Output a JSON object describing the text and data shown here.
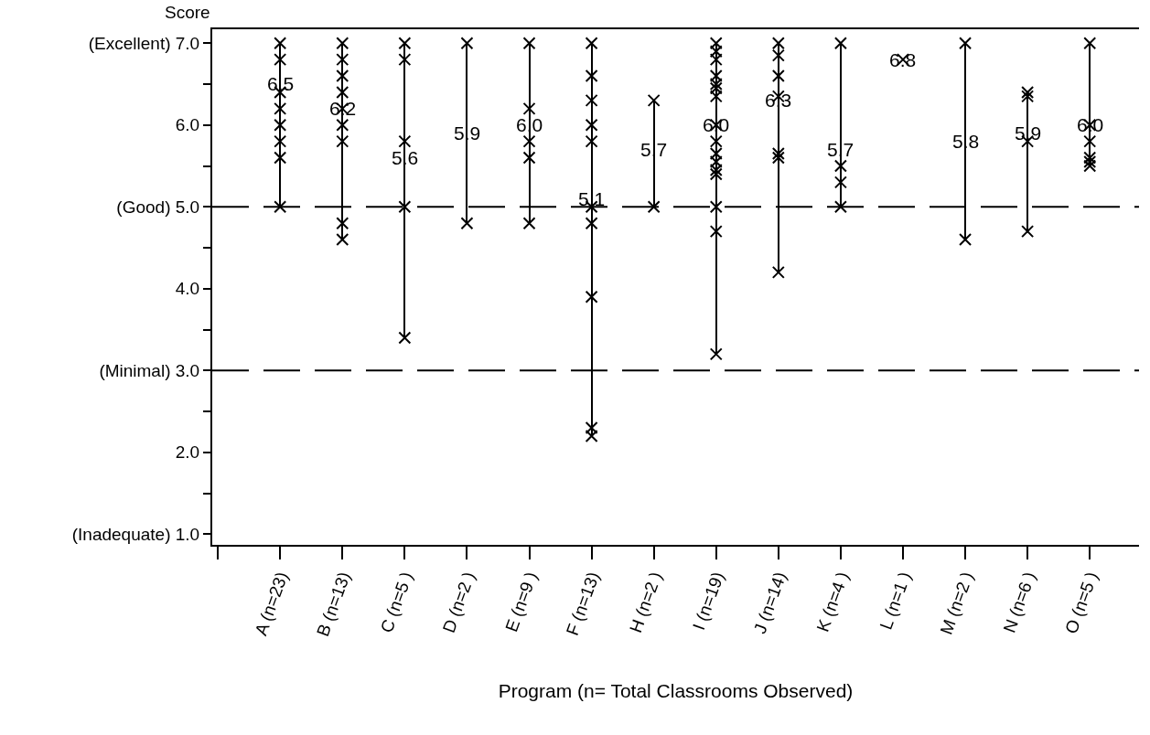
{
  "chart_data": {
    "type": "scatter",
    "xlabel": "Program (n= Total Classrooms Observed)",
    "ylabel": "Score",
    "categories": [
      null,
      "A (n=23)",
      "B (n=13)",
      "C (n=5 )",
      "D (n=2 )",
      "E (n=9 )",
      "F (n=13)",
      "H (n=2 )",
      "I (n=19)",
      "J (n=14)",
      "K (n=4 )",
      "L (n=1 )",
      "M (n=2 )",
      "N (n=6 )",
      "O (n=5 )"
    ],
    "ylim": [
      0.87,
      7.17
    ],
    "yticks": [
      {
        "value": 1,
        "label": "(Inadequate) 1.0"
      },
      {
        "value": 1.5,
        "label": null
      },
      {
        "value": 2,
        "label": "2.0"
      },
      {
        "value": 2.5,
        "label": null
      },
      {
        "value": 3,
        "label": "(Minimal) 3.0"
      },
      {
        "value": 3.5,
        "label": null
      },
      {
        "value": 4,
        "label": "4.0"
      },
      {
        "value": 4.5,
        "label": null
      },
      {
        "value": 5,
        "label": "(Good) 5.0"
      },
      {
        "value": 5.5,
        "label": null
      },
      {
        "value": 6,
        "label": "6.0"
      },
      {
        "value": 6.5,
        "label": null
      },
      {
        "value": 7,
        "label": "(Excellent) 7.0"
      }
    ],
    "series": [
      {
        "type": "bar",
        "color": "#000000",
        "base": [
          null,
          5.0,
          4.6,
          3.4,
          4.8,
          4.8,
          2.2,
          5.0,
          3.2,
          4.2,
          5.0,
          null,
          4.6,
          4.7,
          5.5
        ],
        "values": [
          null,
          2.0,
          2.4,
          3.6,
          2.2,
          2.2,
          4.8,
          1.3,
          3.8,
          2.8,
          2.0,
          null,
          2.4,
          1.7,
          1.5
        ]
      },
      {
        "color": "#000000",
        "marker": "cross",
        "x": [
          "A (n=23)",
          "A (n=23)",
          "A (n=23)",
          "A (n=23)",
          "A (n=23)",
          "A (n=23)",
          "A (n=23)",
          "A (n=23)",
          "B (n=13)",
          "B (n=13)",
          "B (n=13)",
          "B (n=13)",
          "B (n=13)",
          "B (n=13)",
          "B (n=13)",
          "B (n=13)",
          "B (n=13)",
          "C (n=5 )",
          "C (n=5 )",
          "C (n=5 )",
          "C (n=5 )",
          "C (n=5 )",
          "D (n=2 )",
          "D (n=2 )",
          "E (n=9 )",
          "E (n=9 )",
          "E (n=9 )",
          "E (n=9 )",
          "E (n=9 )",
          "F (n=13)",
          "F (n=13)",
          "F (n=13)",
          "F (n=13)",
          "F (n=13)",
          "F (n=13)",
          "F (n=13)",
          "F (n=13)",
          "F (n=13)",
          "F (n=13)",
          "H (n=2 )",
          "H (n=2 )",
          "I (n=19)",
          "I (n=19)",
          "I (n=19)",
          "I (n=19)",
          "I (n=19)",
          "I (n=19)",
          "I (n=19)",
          "I (n=19)",
          "I (n=19)",
          "I (n=19)",
          "I (n=19)",
          "I (n=19)",
          "I (n=19)",
          "I (n=19)",
          "I (n=19)",
          "I (n=19)",
          "J (n=14)",
          "J (n=14)",
          "J (n=14)",
          "J (n=14)",
          "J (n=14)",
          "J (n=14)",
          "J (n=14)",
          "K (n=4 )",
          "K (n=4 )",
          "K (n=4 )",
          "K (n=4 )",
          "L (n=1 )",
          "M (n=2 )",
          "M (n=2 )",
          "N (n=6 )",
          "N (n=6 )",
          "N (n=6 )",
          "N (n=6 )",
          "O (n=5 )",
          "O (n=5 )",
          "O (n=5 )",
          "O (n=5 )",
          "O (n=5 )",
          "O (n=5 )"
        ],
        "values": [
          7.0,
          6.8,
          6.4,
          6.2,
          6.0,
          5.8,
          5.6,
          5.0,
          7.0,
          6.8,
          6.6,
          6.4,
          6.2,
          6.0,
          5.8,
          4.8,
          4.6,
          7.0,
          6.8,
          5.8,
          5.0,
          3.4,
          7.0,
          4.8,
          7.0,
          6.2,
          5.8,
          5.6,
          4.8,
          7.0,
          6.6,
          6.3,
          6.0,
          5.8,
          5.0,
          4.8,
          3.9,
          2.3,
          2.2,
          6.3,
          5.0,
          7.0,
          6.9,
          6.8,
          6.6,
          6.5,
          6.45,
          6.35,
          6.0,
          5.8,
          5.65,
          5.55,
          5.45,
          5.4,
          5.0,
          4.7,
          3.2,
          7.0,
          6.85,
          6.6,
          6.35,
          5.65,
          5.6,
          4.2,
          7.0,
          5.5,
          5.3,
          5.0,
          6.8,
          7.0,
          4.6,
          6.4,
          6.35,
          5.8,
          4.7,
          7.0,
          6.0,
          5.8,
          5.6,
          5.55,
          5.5
        ]
      }
    ],
    "ref_lines": [
      {
        "axis": "y",
        "value": 5,
        "color": "#000000",
        "line_style": "dashed"
      },
      {
        "axis": "y",
        "value": 3,
        "color": "#000000",
        "line_style": "dashed"
      }
    ],
    "annotations": [
      {
        "text": "6.5",
        "x": "A (n=23)",
        "y": 6.5
      },
      {
        "text": "6.2",
        "x": "B (n=13)",
        "y": 6.2
      },
      {
        "text": "5.6",
        "x": "C (n=5 )",
        "y": 5.6
      },
      {
        "text": "5.9",
        "x": "D (n=2 )",
        "y": 5.9
      },
      {
        "text": "6.0",
        "x": "E (n=9 )",
        "y": 6.0
      },
      {
        "text": "5.1",
        "x": "F (n=13)",
        "y": 5.1
      },
      {
        "text": "5.7",
        "x": "H (n=2 )",
        "y": 5.7
      },
      {
        "text": "6.0",
        "x": "I (n=19)",
        "y": 6.0
      },
      {
        "text": "6.3",
        "x": "J (n=14)",
        "y": 6.3
      },
      {
        "text": "5.7",
        "x": "K (n=4 )",
        "y": 5.7
      },
      {
        "text": "6.8",
        "x": "L (n=1 )",
        "y": 6.8
      },
      {
        "text": "5.8",
        "x": "M (n=2 )",
        "y": 5.8
      },
      {
        "text": "5.9",
        "x": "N (n=6 )",
        "y": 5.9
      },
      {
        "text": "6.0",
        "x": "O (n=5 )",
        "y": 6.0
      }
    ],
    "grid": false
  }
}
